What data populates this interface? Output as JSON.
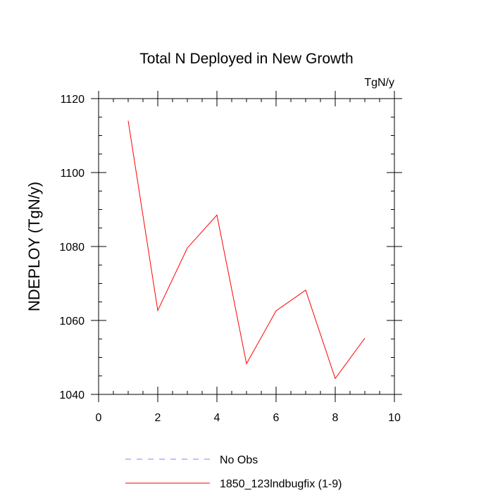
{
  "chart_data": {
    "type": "line",
    "title": "Total N Deployed in New Growth",
    "units_label": "TgN/y",
    "ylabel": "NDEPLOY  (TgN/y)",
    "xlabel": "",
    "xlim": [
      0,
      10
    ],
    "ylim": [
      1040,
      1120
    ],
    "x_ticks": [
      0,
      2,
      4,
      6,
      8,
      10
    ],
    "y_ticks": [
      1040,
      1060,
      1080,
      1100,
      1120
    ],
    "x_minor_step": 0.5,
    "y_minor_step": 5,
    "series": [
      {
        "name": "1850_123lndbugfix (1-9)",
        "color": "#ff0000",
        "dash": "solid",
        "x": [
          1,
          2,
          3,
          4,
          5,
          6,
          7,
          8,
          9
        ],
        "y": [
          1114,
          1062.7,
          1079.6,
          1088.5,
          1048.3,
          1062.6,
          1068.2,
          1044.3,
          1055.2
        ]
      }
    ],
    "legend": [
      {
        "label": "No Obs",
        "color": "#8080ff",
        "dash": "dashed"
      },
      {
        "label": "1850_123lndbugfix (1-9)",
        "color": "#ff0000",
        "dash": "solid"
      }
    ],
    "legend_position": "bottom",
    "grid": false
  }
}
